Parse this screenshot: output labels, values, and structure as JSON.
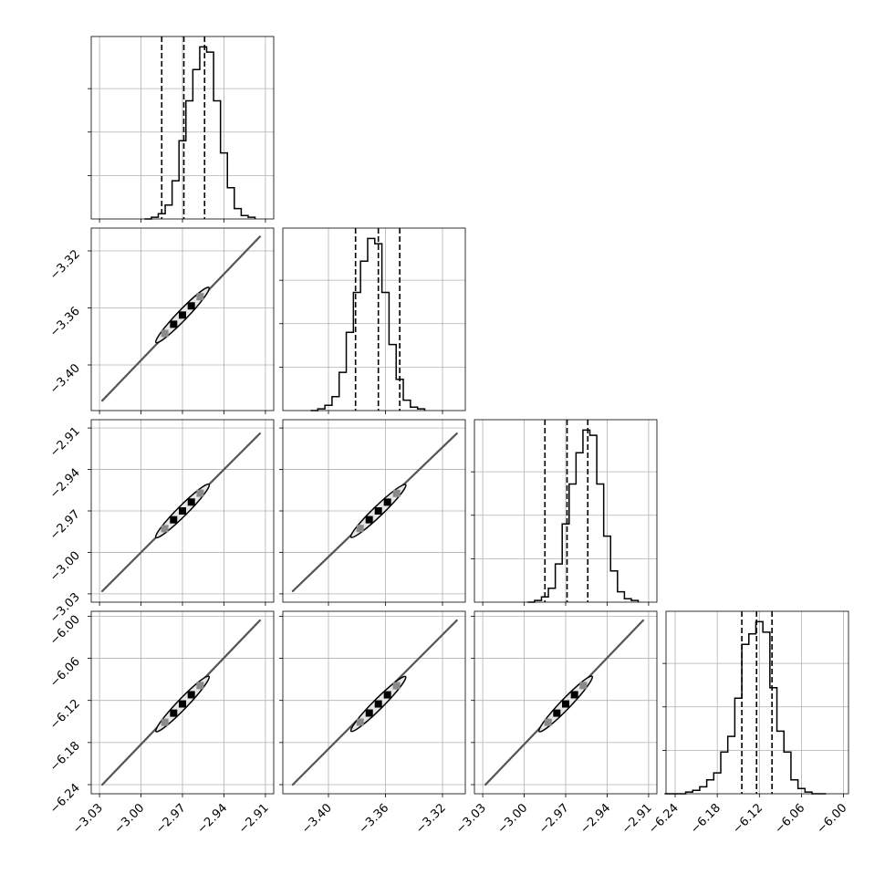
{
  "figure": {
    "type": "corner plot",
    "title": "",
    "colors": {
      "line": "#000000",
      "grid": "#b0b0b0",
      "density_dark": "#000000",
      "density_light": "#bdbdbd"
    }
  },
  "chart_data": [
    {
      "panel": "hist-1",
      "type": "histogram",
      "x": [
        -2.995,
        -2.99,
        -2.985,
        -2.98,
        -2.975,
        -2.97,
        -2.965,
        -2.96,
        -2.955,
        -2.95,
        -2.945,
        -2.94,
        -2.935,
        -2.93,
        -2.925,
        -2.92
      ],
      "values": [
        0.0,
        0.01,
        0.03,
        0.08,
        0.22,
        0.45,
        0.68,
        0.86,
        0.99,
        0.96,
        0.68,
        0.38,
        0.18,
        0.06,
        0.02,
        0.01
      ],
      "quantiles": [
        -2.985,
        -2.969,
        -2.954
      ],
      "xlim": [
        -3.036,
        -2.904
      ],
      "ylim": [
        0,
        1.05
      ],
      "yticks": [
        0.25,
        0.5,
        0.75
      ],
      "ytick_labels": false,
      "xticks": [
        -3.03,
        -3.0,
        -2.97,
        -2.94,
        -2.91
      ],
      "xtick_labels": null
    },
    {
      "panel": "scatter-2-1",
      "type": "scatter",
      "x_param": 1,
      "y_param": 2,
      "line": {
        "x": [
          -3.028,
          -2.914
        ],
        "y": [
          -3.425,
          -3.31
        ]
      },
      "contour": {
        "center": [
          -2.97,
          -3.365
        ],
        "along": [
          -2.985,
          -2.954
        ]
      },
      "xlim": [
        -3.036,
        -2.904
      ],
      "ylim": [
        -3.432,
        -3.304
      ],
      "xticks": [
        -3.03,
        -3.0,
        -2.97,
        -2.94,
        -2.91
      ],
      "yticks": [
        -3.4,
        -3.36,
        -3.32
      ],
      "ytick_labels": [
        "−3.40",
        "−3.36",
        "−3.32"
      ]
    },
    {
      "panel": "hist-2",
      "type": "histogram",
      "x": [
        -3.41,
        -3.405,
        -3.4,
        -3.395,
        -3.39,
        -3.385,
        -3.38,
        -3.375,
        -3.37,
        -3.365,
        -3.36,
        -3.355,
        -3.35,
        -3.345,
        -3.34,
        -3.335
      ],
      "values": [
        0.0,
        0.01,
        0.03,
        0.08,
        0.22,
        0.45,
        0.68,
        0.86,
        0.99,
        0.96,
        0.68,
        0.38,
        0.18,
        0.06,
        0.02,
        0.01
      ],
      "quantiles": [
        -3.381,
        -3.365,
        -3.35
      ],
      "xlim": [
        -3.432,
        -3.304
      ],
      "ylim": [
        0,
        1.05
      ],
      "yticks": [
        0.25,
        0.5,
        0.75
      ],
      "ytick_labels": false,
      "xticks": [
        -3.4,
        -3.36,
        -3.32
      ],
      "xtick_labels": null
    },
    {
      "panel": "scatter-3-1",
      "type": "scatter",
      "x_param": 1,
      "y_param": 3,
      "line": {
        "x": [
          -3.028,
          -2.914
        ],
        "y": [
          -3.028,
          -2.914
        ]
      },
      "contour": {
        "center": [
          -2.97,
          -2.97
        ],
        "along": [
          -2.985,
          -2.954
        ]
      },
      "xlim": [
        -3.036,
        -2.904
      ],
      "ylim": [
        -3.036,
        -2.904
      ],
      "xticks": [
        -3.03,
        -3.0,
        -2.97,
        -2.94,
        -2.91
      ],
      "yticks": [
        -3.03,
        -3.0,
        -2.97,
        -2.94,
        -2.91
      ],
      "ytick_labels": [
        "−3.03",
        "−3.00",
        "−2.97",
        "−2.94",
        "−2.91"
      ]
    },
    {
      "panel": "scatter-3-2",
      "type": "scatter",
      "x_param": 2,
      "y_param": 3,
      "line": {
        "x": [
          -3.425,
          -3.31
        ],
        "y": [
          -3.028,
          -2.914
        ]
      },
      "contour": {
        "center": [
          -3.365,
          -2.97
        ],
        "along": [
          -3.381,
          -3.35
        ]
      },
      "xlim": [
        -3.432,
        -3.304
      ],
      "ylim": [
        -3.036,
        -2.904
      ],
      "xticks": [
        -3.4,
        -3.36,
        -3.32
      ],
      "yticks": [
        -3.03,
        -3.0,
        -2.97,
        -2.94,
        -2.91
      ]
    },
    {
      "panel": "hist-3",
      "type": "histogram",
      "x": [
        -2.995,
        -2.99,
        -2.985,
        -2.98,
        -2.975,
        -2.97,
        -2.965,
        -2.96,
        -2.955,
        -2.95,
        -2.945,
        -2.94,
        -2.935,
        -2.93,
        -2.925,
        -2.92
      ],
      "values": [
        0.0,
        0.01,
        0.03,
        0.08,
        0.22,
        0.45,
        0.68,
        0.86,
        0.99,
        0.96,
        0.68,
        0.38,
        0.18,
        0.06,
        0.02,
        0.01
      ],
      "quantiles": [
        -2.985,
        -2.969,
        -2.954
      ],
      "xlim": [
        -3.036,
        -2.904
      ],
      "ylim": [
        0,
        1.05
      ],
      "yticks": [
        0.25,
        0.5,
        0.75
      ],
      "ytick_labels": false,
      "xticks": [
        -3.03,
        -3.0,
        -2.97,
        -2.94,
        -2.91
      ],
      "xtick_labels": null
    },
    {
      "panel": "scatter-4-1",
      "type": "scatter",
      "x_param": 1,
      "y_param": 4,
      "line": {
        "x": [
          -3.028,
          -2.914
        ],
        "y": [
          -6.24,
          -6.006
        ]
      },
      "contour": {
        "center": [
          -2.97,
          -6.125
        ],
        "along": [
          -2.985,
          -2.954
        ]
      },
      "xlim": [
        -3.036,
        -2.904
      ],
      "ylim": [
        -6.253,
        -5.993
      ],
      "xticks": [
        -3.03,
        -3.0,
        -2.97,
        -2.94,
        -2.91
      ],
      "xtick_labels": [
        "−3.03",
        "−3.00",
        "−2.97",
        "−2.94",
        "−2.91"
      ],
      "yticks": [
        -6.24,
        -6.18,
        -6.12,
        -6.06,
        -6.0
      ],
      "ytick_labels": [
        "−6.24",
        "−6.18",
        "−6.12",
        "−6.06",
        "−6.00"
      ]
    },
    {
      "panel": "scatter-4-2",
      "type": "scatter",
      "x_param": 2,
      "y_param": 4,
      "line": {
        "x": [
          -3.425,
          -3.31
        ],
        "y": [
          -6.24,
          -6.006
        ]
      },
      "contour": {
        "center": [
          -3.365,
          -6.125
        ],
        "along": [
          -3.381,
          -3.35
        ]
      },
      "xlim": [
        -3.432,
        -3.304
      ],
      "ylim": [
        -6.253,
        -5.993
      ],
      "xticks": [
        -3.4,
        -3.36,
        -3.32
      ],
      "xtick_labels": [
        "−3.40",
        "−3.36",
        "−3.32"
      ],
      "yticks": [
        -6.24,
        -6.18,
        -6.12,
        -6.06,
        -6.0
      ]
    },
    {
      "panel": "scatter-4-3",
      "type": "scatter",
      "x_param": 3,
      "y_param": 4,
      "line": {
        "x": [
          -3.028,
          -2.914
        ],
        "y": [
          -6.24,
          -6.006
        ]
      },
      "contour": {
        "center": [
          -2.97,
          -6.125
        ],
        "along": [
          -2.985,
          -2.954
        ]
      },
      "xlim": [
        -3.036,
        -2.904
      ],
      "ylim": [
        -6.253,
        -5.993
      ],
      "xticks": [
        -3.03,
        -3.0,
        -2.97,
        -2.94,
        -2.91
      ],
      "xtick_labels": [
        "−3.03",
        "−3.00",
        "−2.97",
        "−2.94",
        "−2.91"
      ],
      "yticks": [
        -6.24,
        -6.18,
        -6.12,
        -6.06,
        -6.0
      ]
    },
    {
      "panel": "hist-4",
      "type": "histogram",
      "x": [
        -6.25,
        -6.24,
        -6.23,
        -6.22,
        -6.21,
        -6.2,
        -6.19,
        -6.18,
        -6.17,
        -6.16,
        -6.15,
        -6.14,
        -6.13,
        -6.12,
        -6.11,
        -6.1,
        -6.09,
        -6.08,
        -6.07,
        -6.06,
        -6.05,
        -6.04,
        -6.03
      ],
      "values": [
        0.0,
        0.0,
        0.0,
        0.01,
        0.02,
        0.04,
        0.08,
        0.12,
        0.24,
        0.33,
        0.55,
        0.86,
        0.92,
        0.99,
        0.93,
        0.61,
        0.36,
        0.24,
        0.08,
        0.03,
        0.01,
        0.0,
        0.0
      ],
      "quantiles": [
        -6.145,
        -6.124,
        -6.102
      ],
      "xlim": [
        -6.253,
        -5.993
      ],
      "ylim": [
        0,
        1.05
      ],
      "yticks": [
        0.25,
        0.5,
        0.75
      ],
      "ytick_labels": false,
      "xticks": [
        -6.24,
        -6.18,
        -6.12,
        -6.06,
        -6.0
      ],
      "xtick_labels": [
        "−6.24",
        "−6.18",
        "−6.12",
        "−6.06",
        "−6.00"
      ]
    }
  ]
}
